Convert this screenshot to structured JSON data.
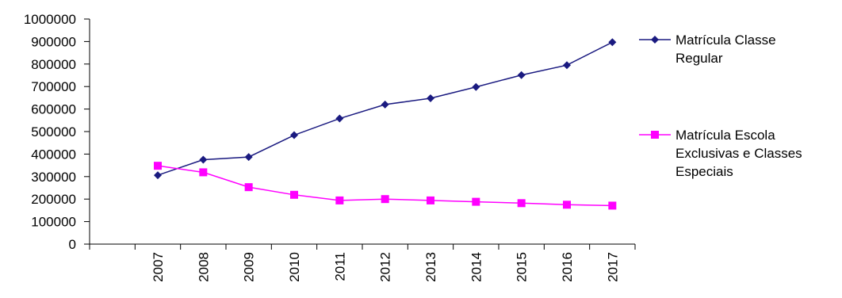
{
  "chart_data": {
    "type": "line",
    "title": "",
    "xlabel": "",
    "ylabel": "",
    "ylim": [
      0,
      1000000
    ],
    "yticks": [
      0,
      100000,
      200000,
      300000,
      400000,
      500000,
      600000,
      700000,
      800000,
      900000,
      1000000
    ],
    "categories": [
      "2007",
      "2008",
      "2009",
      "2010",
      "2011",
      "2012",
      "2013",
      "2014",
      "2015",
      "2016",
      "2017"
    ],
    "grid": false,
    "legend_position": "right",
    "series": [
      {
        "name": "Matrícula Classe Regular",
        "name_lines": [
          "Matrícula Classe",
          "Regular"
        ],
        "color": "#1a1a80",
        "marker": "diamond",
        "values": [
          306000,
          375000,
          387000,
          484000,
          558000,
          620000,
          648000,
          698000,
          751000,
          795000,
          897000
        ]
      },
      {
        "name": "Matrícula Escola Exclusivas e Classes Especiais",
        "name_lines": [
          "Matrícula Escola",
          "Exclusivas e Classes",
          "Especiais"
        ],
        "color": "#ff00ff",
        "marker": "square",
        "values": [
          348000,
          319000,
          253000,
          219000,
          194000,
          200000,
          194000,
          188000,
          182000,
          175000,
          171000
        ]
      }
    ]
  }
}
